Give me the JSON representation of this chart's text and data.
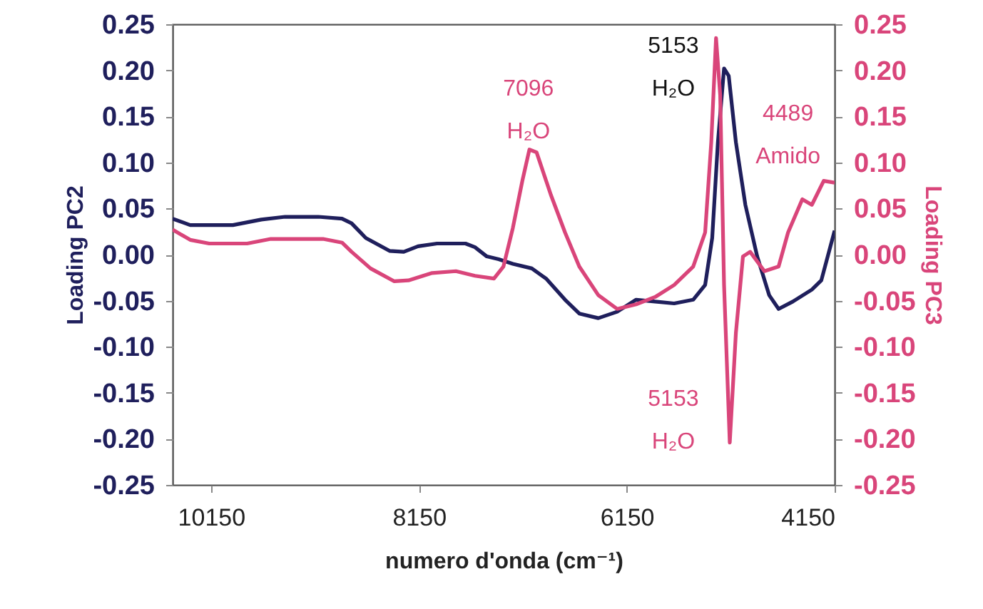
{
  "chart_data": {
    "type": "line",
    "xlabel": "numero d'onda (cm⁻¹)",
    "ylabel": "Loading PC2",
    "y2label": "Loading PC3",
    "xlim": [
      10520,
      4150
    ],
    "xticks": [
      10150,
      8150,
      6150,
      4150
    ],
    "ylim": [
      -0.25,
      0.25
    ],
    "yticks": [
      {
        "value": -0.25,
        "label": "-0.25"
      },
      {
        "value": -0.2,
        "label": "-0.20"
      },
      {
        "value": -0.15,
        "label": "-0.15"
      },
      {
        "value": -0.1,
        "label": "-0.10"
      },
      {
        "value": -0.05,
        "label": "-0.05"
      },
      {
        "value": 0,
        "label": "0.00"
      },
      {
        "value": 0.05,
        "label": "0.05"
      },
      {
        "value": 0.1,
        "label": "0.10"
      },
      {
        "value": 0.15,
        "label": "0.15"
      },
      {
        "value": 0.2,
        "label": "0.20"
      },
      {
        "value": 0.25,
        "label": "0.25"
      }
    ],
    "y2lim": [
      -0.25,
      0.25
    ],
    "y2ticks": [
      {
        "value": -0.25,
        "label": "-0.25"
      },
      {
        "value": -0.2,
        "label": "-0.20"
      },
      {
        "value": -0.15,
        "label": "-0.15"
      },
      {
        "value": -0.1,
        "label": "-0.10"
      },
      {
        "value": -0.05,
        "label": "-0.05"
      },
      {
        "value": 0,
        "label": "0.00"
      },
      {
        "value": 0.05,
        "label": "0.05"
      },
      {
        "value": 0.1,
        "label": "0.10"
      },
      {
        "value": 0.15,
        "label": "0.15"
      },
      {
        "value": 0.2,
        "label": "0.20"
      },
      {
        "value": 0.25,
        "label": "0.25"
      }
    ],
    "series": [
      {
        "color": "#1f1f5c",
        "x": [
          10520,
          10351,
          9940,
          9666,
          9438,
          9118,
          8890,
          8798,
          8661,
          8433,
          8296,
          8159,
          7976,
          7702,
          7611,
          7497,
          7383,
          7246,
          7064,
          6927,
          6744,
          6607,
          6424,
          6242,
          6060,
          5877,
          5694,
          5511,
          5396,
          5328,
          5273,
          5214,
          5169,
          5100,
          5009,
          4895,
          4780,
          4689,
          4552,
          4369,
          4278,
          4150
        ],
        "values": [
          0.039,
          0.032,
          0.032,
          0.038,
          0.041,
          0.041,
          0.039,
          0.034,
          0.018,
          0.004,
          0.003,
          0.009,
          0.012,
          0.012,
          0.008,
          -0.002,
          -0.005,
          -0.01,
          -0.015,
          -0.026,
          -0.049,
          -0.064,
          -0.069,
          -0.062,
          -0.049,
          -0.051,
          -0.053,
          -0.049,
          -0.033,
          0.018,
          0.122,
          0.202,
          0.194,
          0.122,
          0.054,
          -0.002,
          -0.044,
          -0.059,
          -0.051,
          -0.038,
          -0.028,
          0.026
        ]
      },
      {
        "color": "#d9457a",
        "axis": "y2",
        "x": [
          10520,
          10351,
          10168,
          9803,
          9575,
          9073,
          8890,
          8798,
          8616,
          8387,
          8251,
          8023,
          7794,
          7611,
          7428,
          7337,
          7246,
          7155,
          7087,
          7018,
          6881,
          6744,
          6607,
          6424,
          6242,
          6060,
          5877,
          5694,
          5511,
          5396,
          5337,
          5291,
          5251,
          5214,
          5159,
          5100,
          5032,
          4963,
          4826,
          4689,
          4598,
          4461,
          4369,
          4255,
          4150
        ],
        "values": [
          0.027,
          0.016,
          0.012,
          0.012,
          0.017,
          0.017,
          0.013,
          0.003,
          -0.015,
          -0.029,
          -0.028,
          -0.02,
          -0.018,
          -0.023,
          -0.026,
          -0.013,
          0.029,
          0.08,
          0.114,
          0.111,
          0.065,
          0.024,
          -0.013,
          -0.044,
          -0.059,
          -0.054,
          -0.046,
          -0.033,
          -0.013,
          0.024,
          0.122,
          0.235,
          0.173,
          -0.033,
          -0.204,
          -0.085,
          -0.002,
          0.003,
          -0.018,
          -0.013,
          0.024,
          0.06,
          0.054,
          0.08,
          0.078
        ]
      }
    ],
    "annotations": [
      {
        "text": "7096\nH₂O",
        "x": 7096,
        "y": 0.114
      },
      {
        "text": "5153\nH₂O",
        "x": 5153,
        "y": 0.202
      },
      {
        "text": "4489\nAmido",
        "x": 4489,
        "y": 0.06
      },
      {
        "text": "5153\nH₂O",
        "x": 5153,
        "y": -0.204
      }
    ]
  }
}
